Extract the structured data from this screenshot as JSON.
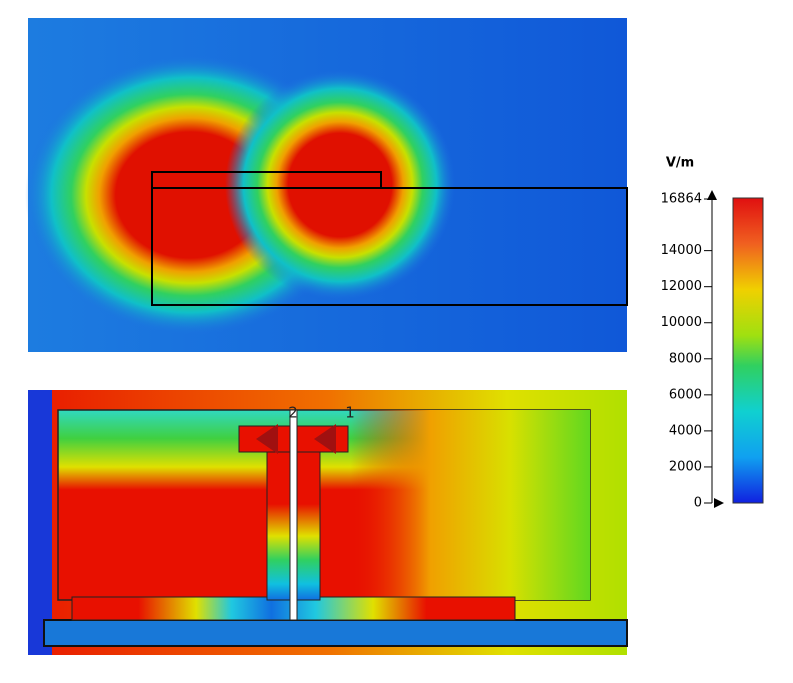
{
  "colorbar": {
    "unit": "V/m",
    "range": [
      0,
      16864
    ],
    "ticks": [
      0,
      2000,
      4000,
      6000,
      8000,
      10000,
      12000,
      14000,
      16864
    ]
  },
  "ports": [
    "2",
    "1"
  ]
}
